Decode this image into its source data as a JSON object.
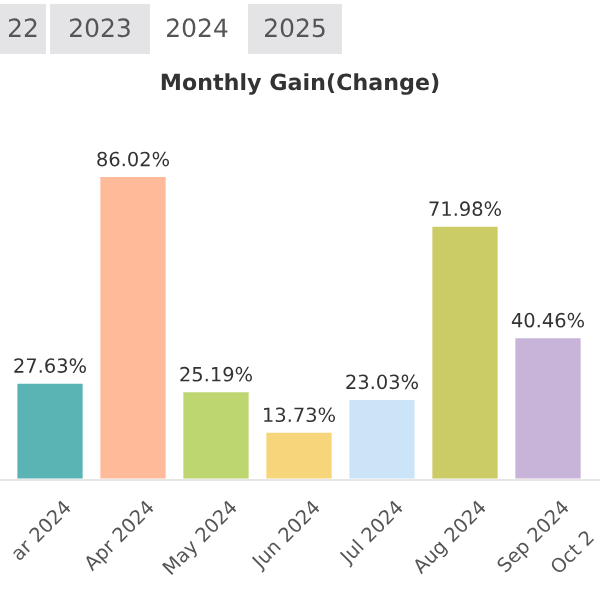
{
  "chart_data": {
    "type": "bar",
    "title": "Monthly Gain(Change)",
    "annotations": [
      "22",
      "2023",
      "2024",
      "2025"
    ],
    "categories": [
      "ar 2024",
      "Apr 2024",
      "May 2024",
      "Jun 2024",
      "Jul 2024",
      "Aug 2024",
      "Sep 2024",
      "Oct 2"
    ],
    "values": [
      27.63,
      86.02,
      25.19,
      13.73,
      23.03,
      71.98,
      40.46,
      null
    ],
    "value_labels": [
      "27.63%",
      "86.02%",
      "25.19%",
      "13.73%",
      "23.03%",
      "71.98%",
      "40.46%",
      null
    ],
    "colors": [
      "#5ab4b4",
      "#ffbb99",
      "#bdd670",
      "#f7d57a",
      "#cce4f7",
      "#cccc66",
      "#c8b4d8",
      "#99bb77"
    ]
  }
}
